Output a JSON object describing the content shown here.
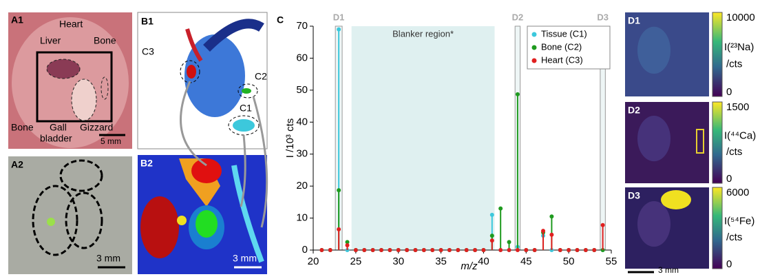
{
  "panels": {
    "a1": {
      "label": "A1",
      "heart": "Heart",
      "liver": "Liver",
      "bone_top": "Bone",
      "bone_left": "Bone",
      "gall": "Gall",
      "bladder": "bladder",
      "gizzard": "Gizzard",
      "scale": "5 mm"
    },
    "a2": {
      "label": "A2",
      "scale": "3 mm"
    },
    "b1": {
      "label": "B1",
      "c1": "C1",
      "c2": "C2",
      "c3": "C3"
    },
    "b2": {
      "label": "B2",
      "scale": "3 mm"
    },
    "c": {
      "label": "C"
    },
    "d": [
      {
        "label": "D1",
        "max": 10000,
        "min": 0,
        "quantity": "I(²³Na)",
        "unit": "/cts"
      },
      {
        "label": "D2",
        "max": 1500,
        "min": 0,
        "quantity": "I(⁴⁴Ca)",
        "unit": "/cts"
      },
      {
        "label": "D3",
        "max": 6000,
        "min": 0,
        "quantity": "I(⁵⁴Fe)",
        "unit": "/cts"
      }
    ],
    "d_scale": "3 mm"
  },
  "chart_data": {
    "type": "stem",
    "xlabel": "m/z",
    "ylabel": "I /10³ cts",
    "x": [
      21,
      22,
      23,
      24,
      25,
      26,
      27,
      28,
      29,
      30,
      31,
      32,
      33,
      34,
      35,
      36,
      37,
      38,
      39,
      40,
      41,
      42,
      43,
      44,
      45,
      46,
      47,
      48,
      49,
      50,
      51,
      52,
      53,
      54
    ],
    "series": [
      {
        "name": "Tissue (C1)",
        "color": "#3cc8dc",
        "values": [
          0,
          0,
          69,
          0,
          0,
          0,
          0,
          0,
          0,
          0,
          0,
          0,
          0,
          0,
          0,
          0,
          0,
          0,
          0,
          0,
          11,
          0,
          0,
          1,
          0,
          0,
          4.5,
          0,
          0,
          0,
          0,
          0,
          0,
          0
        ]
      },
      {
        "name": "Bone (C2)",
        "color": "#1f9a1f",
        "values": [
          0,
          0,
          18.7,
          2.5,
          0,
          0,
          0,
          0,
          0,
          0,
          0,
          0,
          0,
          0,
          0,
          0,
          0,
          0,
          0,
          0,
          4.5,
          13,
          2.5,
          48.7,
          0,
          0,
          5.5,
          10.5,
          0,
          0,
          0,
          0,
          0,
          0
        ]
      },
      {
        "name": "Heart (C3)",
        "color": "#e02020",
        "values": [
          0,
          0,
          6.5,
          1.5,
          0,
          0,
          0,
          0,
          0,
          0,
          0,
          0,
          0,
          0,
          0,
          0,
          0,
          0,
          0,
          0,
          3,
          0,
          0,
          0,
          0,
          0,
          6,
          4.8,
          0,
          0,
          0,
          0,
          0,
          7.8
        ]
      }
    ],
    "regions": [
      {
        "label": "D1",
        "range": [
          22.6,
          23.4
        ]
      },
      {
        "label": "Blanker region*",
        "range": [
          24.5,
          41.3
        ]
      },
      {
        "label": "D2",
        "range": [
          43.7,
          44.3
        ]
      },
      {
        "label": "D3",
        "range": [
          53.7,
          54.3
        ]
      }
    ],
    "xlim": [
      20,
      55
    ],
    "xticks": [
      20,
      25,
      30,
      35,
      40,
      45,
      50,
      55
    ],
    "ylim": [
      0,
      70
    ],
    "yticks": [
      0,
      10,
      20,
      30,
      40,
      50,
      60,
      70
    ],
    "legend": "upper right"
  }
}
